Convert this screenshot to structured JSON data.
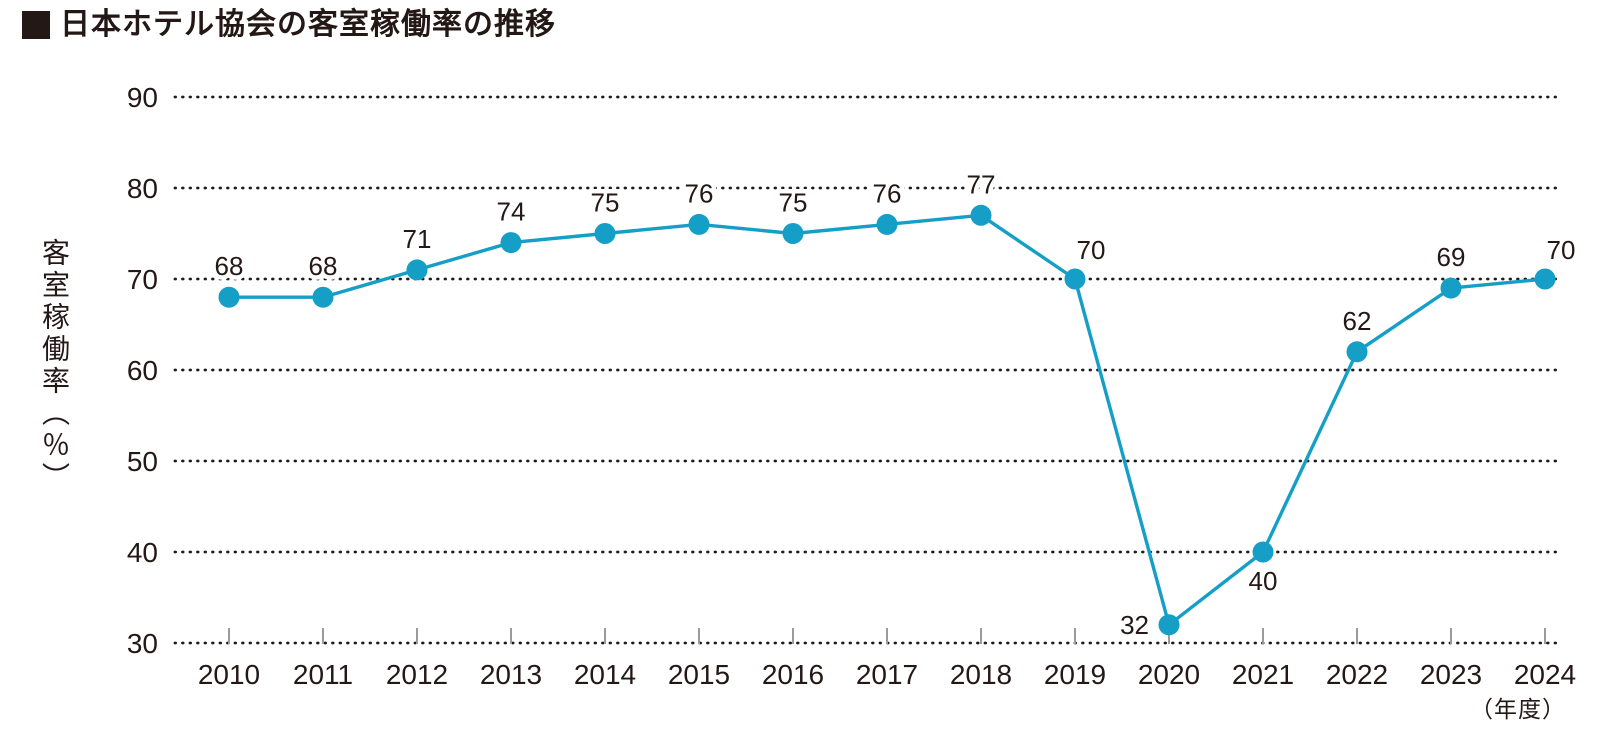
{
  "chart_data": {
    "type": "line",
    "title": "日本ホテル協会の客室稼働率の推移",
    "x": [
      2010,
      2011,
      2012,
      2013,
      2014,
      2015,
      2016,
      2017,
      2018,
      2019,
      2020,
      2021,
      2022,
      2023,
      2024
    ],
    "values": [
      68,
      68,
      71,
      74,
      75,
      76,
      75,
      76,
      77,
      70,
      32,
      40,
      62,
      69,
      70
    ],
    "xlabel": "（年度）",
    "ylabel": "客室稼働率（％）",
    "ylim": [
      30,
      90
    ],
    "yticks": [
      90,
      80,
      70,
      60,
      50,
      40,
      30
    ],
    "grid": "horizontal-dotted",
    "legend": "none",
    "colors": {
      "line": "#159FC7",
      "marker": "#159FC7",
      "text": "#231815",
      "grid_dots": "#1c1c1c",
      "axis_ticks": "#9b9b9b",
      "background": "#ffffff"
    },
    "label_pos_overrides": {
      "2019": "above-right",
      "2020": "left",
      "2021": "below",
      "2024": "above-right"
    }
  }
}
